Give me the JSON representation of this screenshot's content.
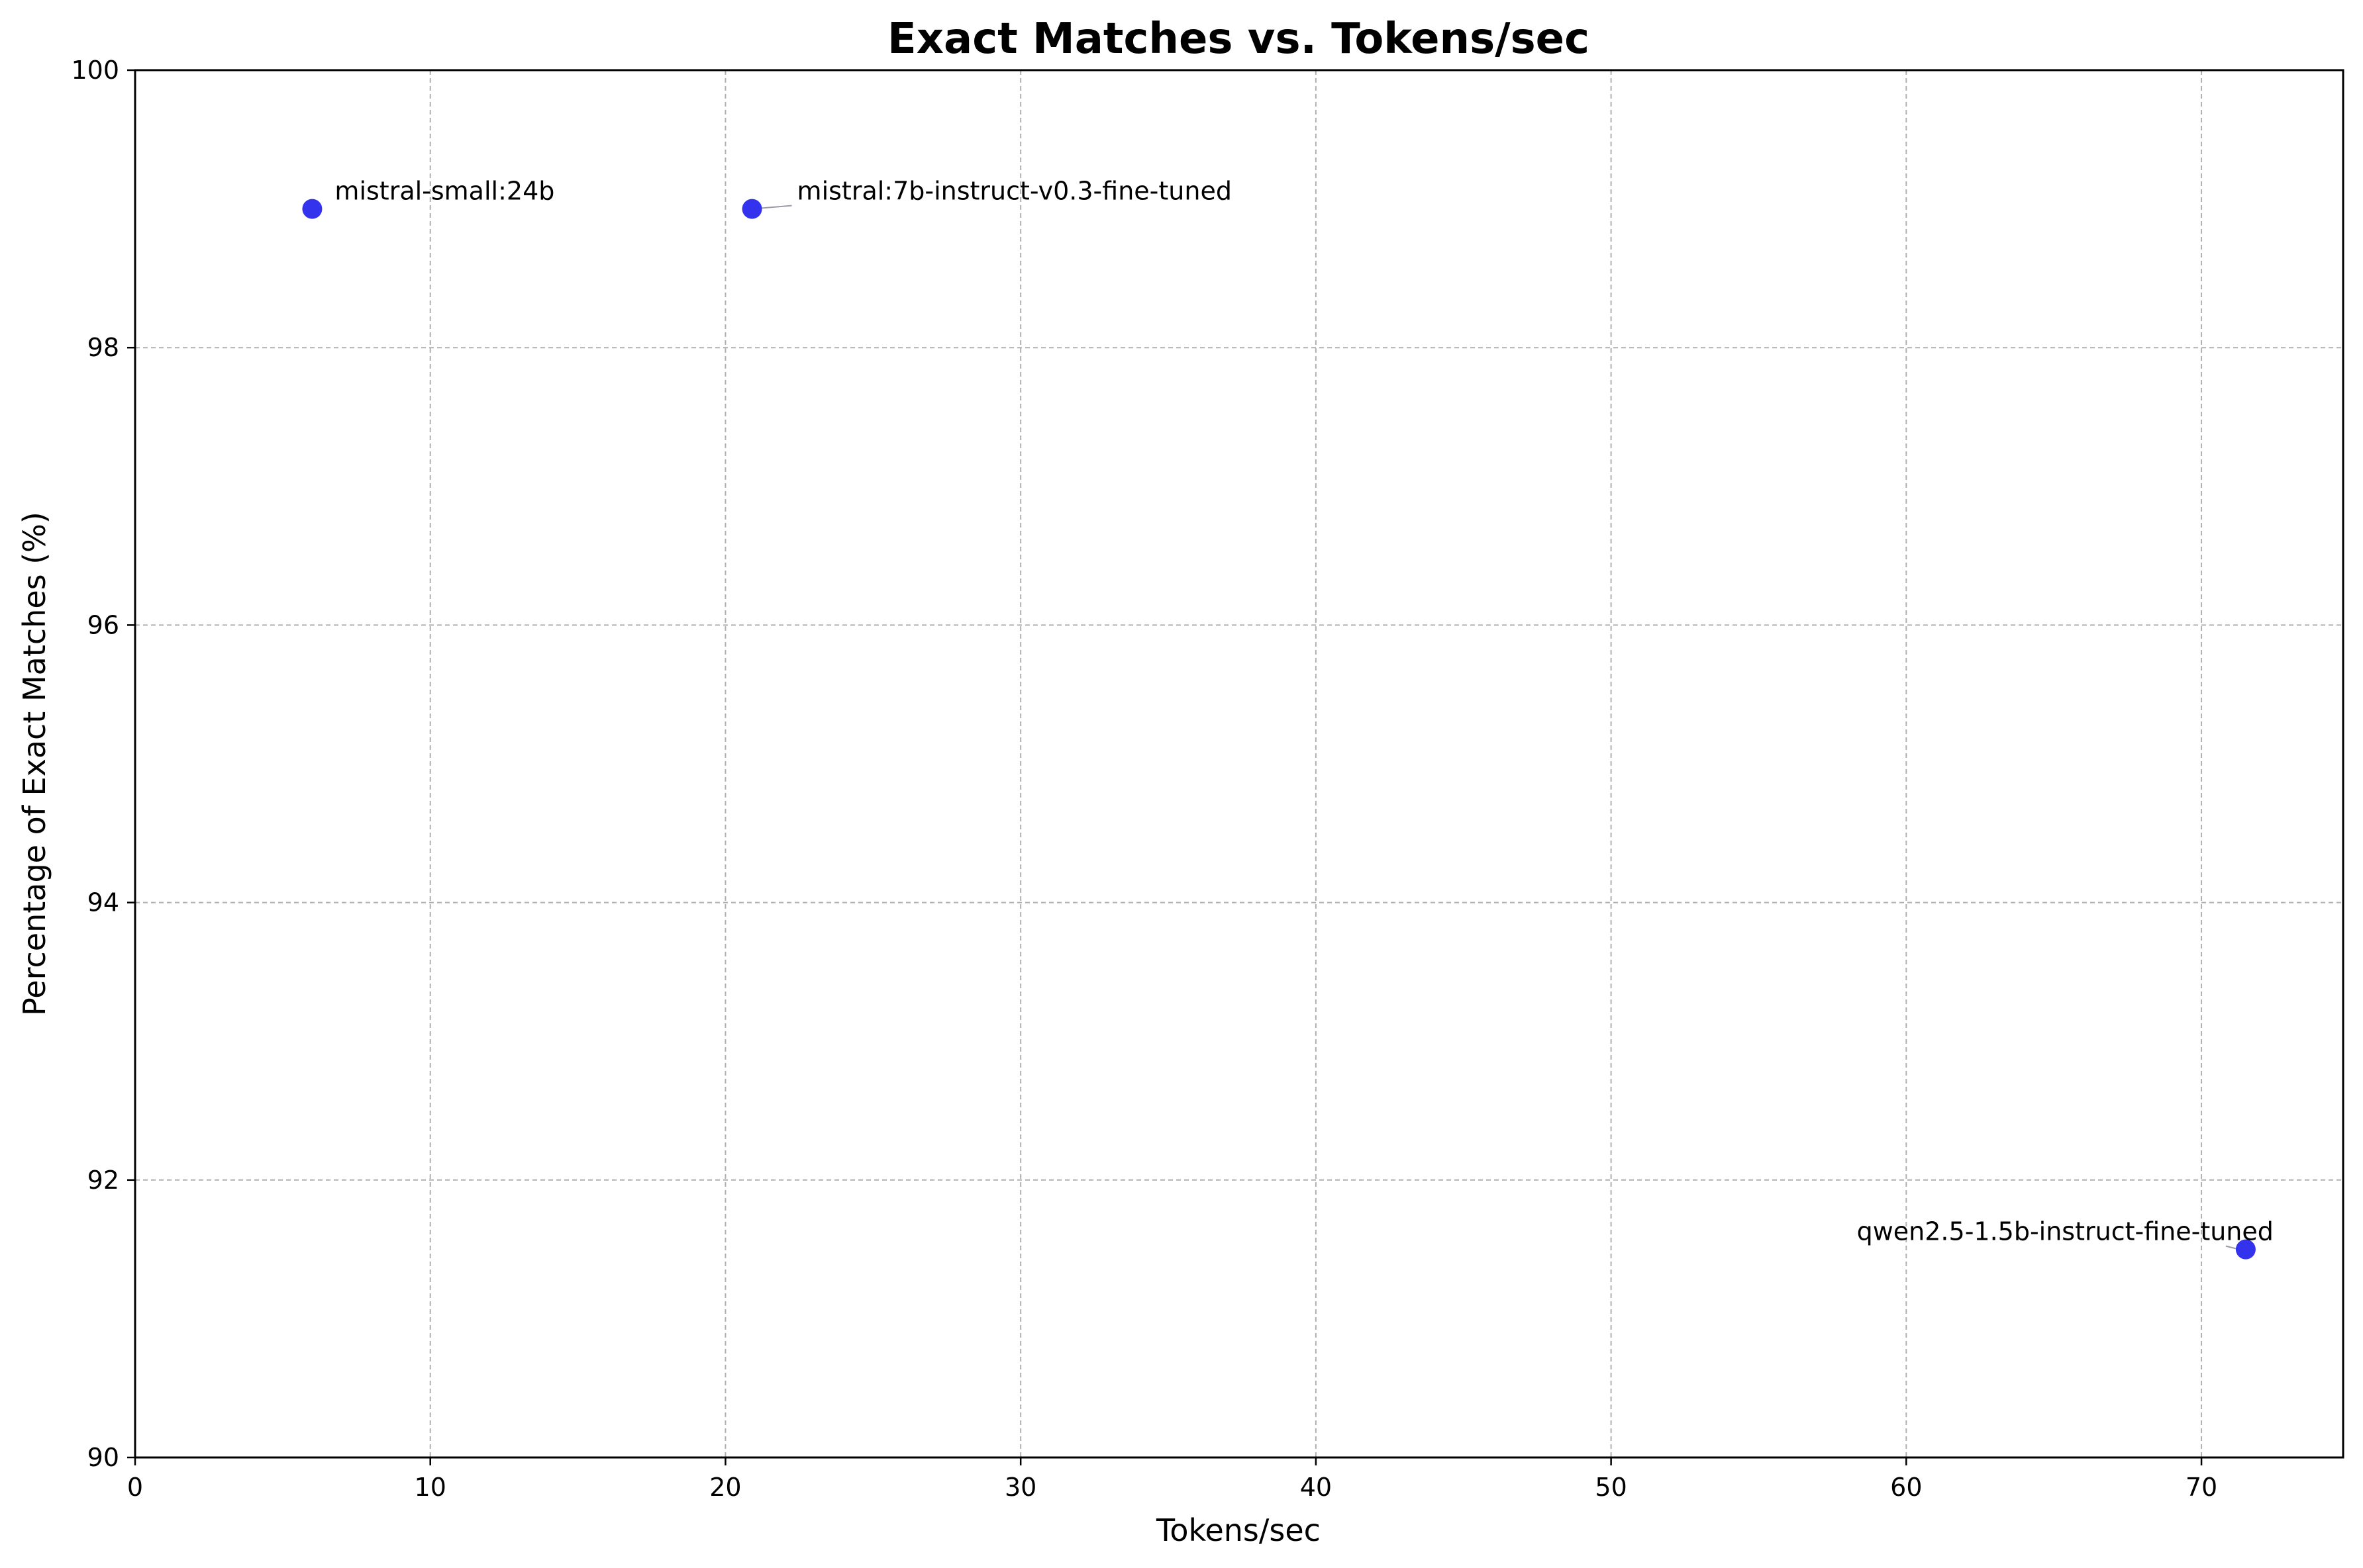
{
  "chart_data": {
    "type": "scatter",
    "title": "Exact Matches vs. Tokens/sec",
    "xlabel": "Tokens/sec",
    "ylabel": "Percentage of Exact Matches (%)",
    "xlim": [
      0,
      74.8
    ],
    "ylim": [
      90,
      100
    ],
    "xticks": [
      0,
      10,
      20,
      30,
      40,
      50,
      60,
      70
    ],
    "yticks": [
      90,
      92,
      94,
      96,
      98,
      100
    ],
    "grid": true,
    "marker_color": "#3333ee",
    "points": [
      {
        "label": "mistral-small:24b",
        "x": 6.0,
        "y": 99.0
      },
      {
        "label": "mistral:7b-instruct-v0.3-fine-tuned",
        "x": 20.9,
        "y": 99.0
      },
      {
        "label": "qwen2.5-1.5b-instruct-fine-tuned",
        "x": 71.5,
        "y": 91.5
      }
    ]
  }
}
